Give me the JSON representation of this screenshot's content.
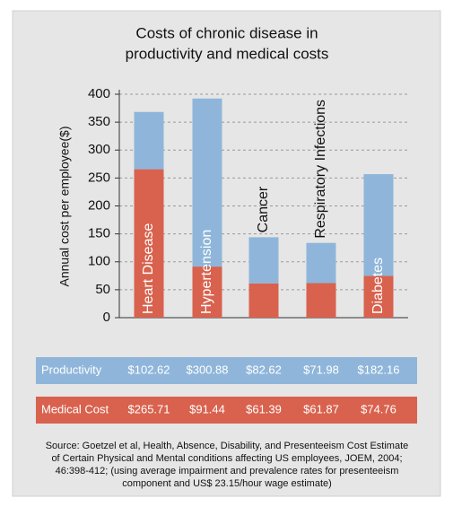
{
  "chart_data": {
    "type": "bar",
    "stacked": true,
    "title": [
      "Costs of chronic disease in",
      "productivity and medical costs"
    ],
    "ylabel": "Annual cost per employee($)",
    "categories": [
      "Heart Disease",
      "Hypertension",
      "Cancer",
      "Respiratory Infections",
      "Diabetes"
    ],
    "series": [
      {
        "name": "Medical Cost",
        "color": "#d8624e",
        "values": [
          265.71,
          91.44,
          61.39,
          61.87,
          74.76
        ],
        "value_labels": [
          "$265.71",
          "$91.44",
          "$61.39",
          "$61.87",
          "$74.76"
        ]
      },
      {
        "name": "Productivity",
        "color": "#8fb6da",
        "values": [
          102.62,
          300.88,
          82.62,
          71.98,
          182.16
        ],
        "value_labels": [
          "$102.62",
          "$300.88",
          "$82.62",
          "$71.98",
          "$182.16"
        ]
      }
    ],
    "ylim": [
      0,
      400
    ],
    "yticks": [
      0,
      50,
      100,
      150,
      200,
      250,
      300,
      350,
      400
    ],
    "grid": true,
    "source": [
      "Source: Goetzel et al, Health, Absence, Disability, and Presenteeism Cost Estimate",
      "of Certain Physical and Mental conditions affecting US employees, JOEM, 2004;",
      "46:398-412; (using average impairment and prevalence rates for presenteeism",
      "component and US$ 23.15/hour wage estimate)"
    ]
  }
}
